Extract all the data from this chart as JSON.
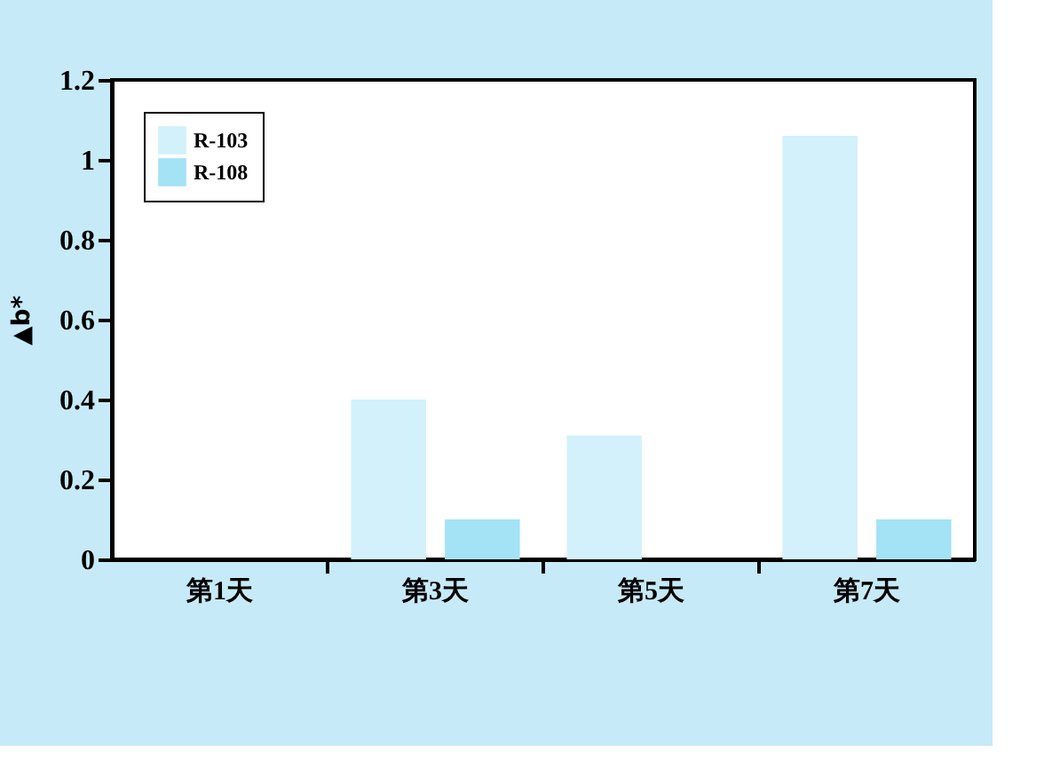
{
  "chart_data": {
    "type": "bar",
    "ylabel": "▲b*",
    "categories": [
      "第1天",
      "第3天",
      "第5天",
      "第7天"
    ],
    "series": [
      {
        "name": "R-103",
        "color": "#d2f1fb",
        "values": [
          0,
          0.4,
          0.31,
          1.06
        ]
      },
      {
        "name": "R-108",
        "color": "#a4e2f6",
        "values": [
          0,
          0.1,
          0,
          0.1
        ]
      }
    ],
    "ylim": [
      0,
      1.2
    ],
    "yticks": [
      0,
      0.2,
      0.4,
      0.6,
      0.8,
      1,
      1.2
    ],
    "grid": false,
    "legend": "top left"
  }
}
